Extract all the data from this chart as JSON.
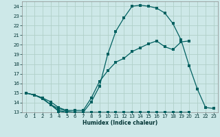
{
  "xlabel": "Humidex (Indice chaleur)",
  "bg_color": "#cde8e8",
  "grid_color": "#b0d0c8",
  "line_color": "#006060",
  "xlim": [
    -0.5,
    23.5
  ],
  "ylim": [
    13,
    24.5
  ],
  "xticks": [
    0,
    1,
    2,
    3,
    4,
    5,
    6,
    7,
    8,
    9,
    10,
    11,
    12,
    13,
    14,
    15,
    16,
    17,
    18,
    19,
    20,
    21,
    22,
    23
  ],
  "yticks": [
    13,
    14,
    15,
    16,
    17,
    18,
    19,
    20,
    21,
    22,
    23,
    24
  ],
  "line1_x": [
    0,
    1,
    2,
    3,
    4,
    5,
    6,
    7,
    8,
    9,
    10,
    11,
    12,
    13,
    14,
    15,
    16,
    17,
    18,
    19,
    20,
    21,
    22,
    23
  ],
  "line1_y": [
    15.0,
    14.8,
    14.4,
    13.8,
    13.1,
    13.0,
    13.0,
    13.0,
    14.1,
    15.7,
    19.0,
    21.4,
    22.8,
    24.0,
    24.1,
    24.0,
    23.8,
    23.3,
    22.2,
    20.5,
    17.8,
    15.4,
    13.5,
    13.4
  ],
  "line2_x": [
    0,
    1,
    2,
    3,
    4,
    5,
    6,
    7,
    8,
    9,
    10,
    11,
    12,
    13,
    14,
    15,
    16,
    17,
    18,
    19,
    20
  ],
  "line2_y": [
    15.0,
    14.8,
    14.5,
    14.1,
    13.5,
    13.2,
    13.2,
    13.2,
    14.5,
    16.2,
    17.3,
    18.2,
    18.6,
    19.3,
    19.7,
    20.1,
    20.4,
    19.8,
    19.5,
    20.3,
    20.4
  ],
  "line3_seg1_x": [
    0,
    1,
    2,
    3,
    4,
    5,
    6,
    7
  ],
  "line3_seg1_y": [
    15.0,
    14.8,
    14.5,
    13.8,
    13.2,
    13.0,
    13.0,
    13.0
  ],
  "line3_seg2_x": [
    3,
    4,
    5,
    6,
    7,
    8,
    9,
    10,
    11,
    12,
    13,
    14,
    15,
    16,
    17,
    18,
    19,
    20,
    21,
    22,
    23
  ],
  "line3_seg2_y": [
    13.8,
    13.4,
    13.1,
    13.0,
    13.0,
    13.0,
    13.0,
    13.0,
    13.0,
    13.0,
    13.0,
    13.0,
    13.0,
    13.0,
    13.0,
    13.0,
    13.0,
    13.0,
    null,
    null,
    13.4
  ]
}
